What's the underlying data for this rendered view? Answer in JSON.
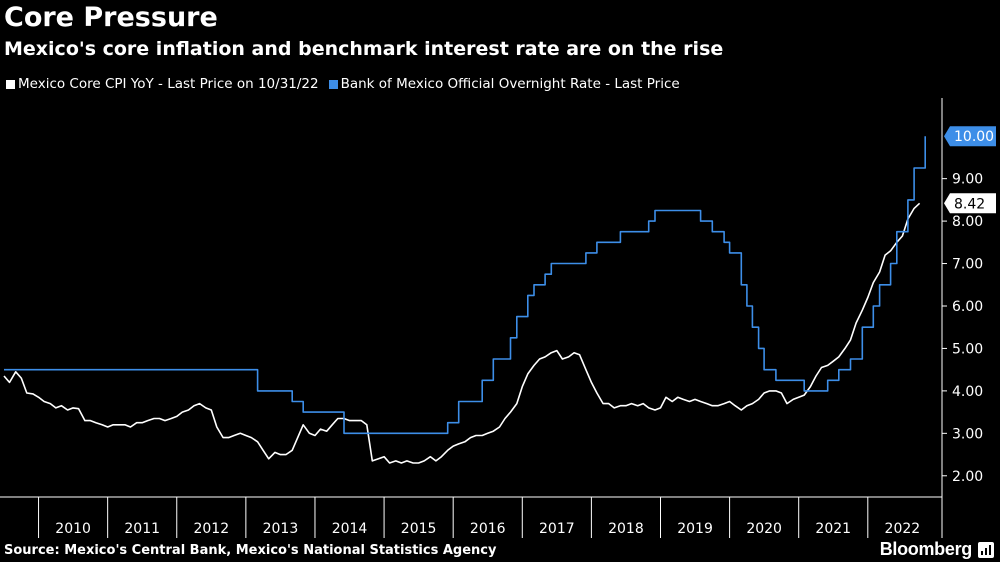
{
  "title": "Core Pressure",
  "subtitle": "Mexico's core inflation and benchmark interest rate are on the rise",
  "source": "Source: Mexico's Central Bank, Mexico's National Statistics Agency",
  "brand": "Bloomberg",
  "legend": [
    {
      "label": "Mexico Core CPI YoY - Last Price on 10/31/22",
      "color": "#ffffff"
    },
    {
      "label": "Bank of Mexico Official Overnight Rate - Last Price",
      "color": "#3d8ee8"
    }
  ],
  "chart_data": {
    "type": "line",
    "title": "Core Pressure",
    "xlabel": "",
    "ylabel": "",
    "xlim": [
      2009.5,
      2022.9
    ],
    "ylim": [
      1.5,
      10.9
    ],
    "yticks": [
      "2.00",
      "3.00",
      "4.00",
      "5.00",
      "6.00",
      "7.00",
      "8.00",
      "9.00"
    ],
    "xticks": [
      "2010",
      "2011",
      "2012",
      "2013",
      "2014",
      "2015",
      "2016",
      "2017",
      "2018",
      "2019",
      "2020",
      "2021",
      "2022"
    ],
    "grid": false,
    "legend_position": "top-left",
    "series": [
      {
        "name": "Mexico Core CPI YoY - Last Price on 10/31/22",
        "color": "#ffffff",
        "last_value_label": "8.42",
        "points": [
          [
            2009.5,
            4.35
          ],
          [
            2009.58,
            4.2
          ],
          [
            2009.67,
            4.45
          ],
          [
            2009.75,
            4.3
          ],
          [
            2009.83,
            3.95
          ],
          [
            2009.92,
            3.93
          ],
          [
            2010.0,
            3.85
          ],
          [
            2010.08,
            3.75
          ],
          [
            2010.17,
            3.7
          ],
          [
            2010.25,
            3.6
          ],
          [
            2010.33,
            3.65
          ],
          [
            2010.42,
            3.55
          ],
          [
            2010.5,
            3.6
          ],
          [
            2010.58,
            3.58
          ],
          [
            2010.67,
            3.3
          ],
          [
            2010.75,
            3.3
          ],
          [
            2010.83,
            3.25
          ],
          [
            2010.92,
            3.2
          ],
          [
            2011.0,
            3.15
          ],
          [
            2011.08,
            3.2
          ],
          [
            2011.17,
            3.2
          ],
          [
            2011.25,
            3.2
          ],
          [
            2011.33,
            3.15
          ],
          [
            2011.42,
            3.25
          ],
          [
            2011.5,
            3.25
          ],
          [
            2011.58,
            3.3
          ],
          [
            2011.67,
            3.35
          ],
          [
            2011.75,
            3.35
          ],
          [
            2011.83,
            3.3
          ],
          [
            2011.92,
            3.35
          ],
          [
            2012.0,
            3.4
          ],
          [
            2012.08,
            3.5
          ],
          [
            2012.17,
            3.55
          ],
          [
            2012.25,
            3.65
          ],
          [
            2012.33,
            3.7
          ],
          [
            2012.42,
            3.6
          ],
          [
            2012.5,
            3.55
          ],
          [
            2012.58,
            3.15
          ],
          [
            2012.67,
            2.9
          ],
          [
            2012.75,
            2.9
          ],
          [
            2012.83,
            2.95
          ],
          [
            2012.92,
            3.0
          ],
          [
            2013.0,
            2.95
          ],
          [
            2013.08,
            2.9
          ],
          [
            2013.17,
            2.8
          ],
          [
            2013.25,
            2.6
          ],
          [
            2013.33,
            2.4
          ],
          [
            2013.42,
            2.55
          ],
          [
            2013.5,
            2.5
          ],
          [
            2013.58,
            2.5
          ],
          [
            2013.67,
            2.6
          ],
          [
            2013.75,
            2.9
          ],
          [
            2013.83,
            3.2
          ],
          [
            2013.92,
            3.0
          ],
          [
            2014.0,
            2.95
          ],
          [
            2014.08,
            3.1
          ],
          [
            2014.17,
            3.05
          ],
          [
            2014.25,
            3.2
          ],
          [
            2014.33,
            3.35
          ],
          [
            2014.42,
            3.35
          ],
          [
            2014.5,
            3.3
          ],
          [
            2014.58,
            3.3
          ],
          [
            2014.67,
            3.3
          ],
          [
            2014.75,
            3.2
          ],
          [
            2014.83,
            2.35
          ],
          [
            2014.92,
            2.4
          ],
          [
            2015.0,
            2.45
          ],
          [
            2015.08,
            2.3
          ],
          [
            2015.17,
            2.35
          ],
          [
            2015.25,
            2.3
          ],
          [
            2015.33,
            2.35
          ],
          [
            2015.42,
            2.3
          ],
          [
            2015.5,
            2.3
          ],
          [
            2015.58,
            2.35
          ],
          [
            2015.67,
            2.45
          ],
          [
            2015.75,
            2.35
          ],
          [
            2015.83,
            2.45
          ],
          [
            2015.92,
            2.6
          ],
          [
            2016.0,
            2.7
          ],
          [
            2016.08,
            2.75
          ],
          [
            2016.17,
            2.8
          ],
          [
            2016.25,
            2.9
          ],
          [
            2016.33,
            2.95
          ],
          [
            2016.42,
            2.95
          ],
          [
            2016.5,
            3.0
          ],
          [
            2016.58,
            3.05
          ],
          [
            2016.67,
            3.15
          ],
          [
            2016.75,
            3.35
          ],
          [
            2016.83,
            3.5
          ],
          [
            2016.92,
            3.7
          ],
          [
            2017.0,
            4.1
          ],
          [
            2017.08,
            4.4
          ],
          [
            2017.17,
            4.6
          ],
          [
            2017.25,
            4.75
          ],
          [
            2017.33,
            4.8
          ],
          [
            2017.42,
            4.9
          ],
          [
            2017.5,
            4.95
          ],
          [
            2017.58,
            4.75
          ],
          [
            2017.67,
            4.8
          ],
          [
            2017.75,
            4.9
          ],
          [
            2017.83,
            4.85
          ],
          [
            2017.92,
            4.5
          ],
          [
            2018.0,
            4.2
          ],
          [
            2018.08,
            3.95
          ],
          [
            2018.17,
            3.7
          ],
          [
            2018.25,
            3.7
          ],
          [
            2018.33,
            3.6
          ],
          [
            2018.42,
            3.65
          ],
          [
            2018.5,
            3.65
          ],
          [
            2018.58,
            3.7
          ],
          [
            2018.67,
            3.65
          ],
          [
            2018.75,
            3.7
          ],
          [
            2018.83,
            3.6
          ],
          [
            2018.92,
            3.55
          ],
          [
            2019.0,
            3.6
          ],
          [
            2019.08,
            3.85
          ],
          [
            2019.17,
            3.75
          ],
          [
            2019.25,
            3.85
          ],
          [
            2019.33,
            3.8
          ],
          [
            2019.42,
            3.75
          ],
          [
            2019.5,
            3.8
          ],
          [
            2019.58,
            3.75
          ],
          [
            2019.67,
            3.7
          ],
          [
            2019.75,
            3.65
          ],
          [
            2019.83,
            3.65
          ],
          [
            2019.92,
            3.7
          ],
          [
            2020.0,
            3.75
          ],
          [
            2020.08,
            3.65
          ],
          [
            2020.17,
            3.55
          ],
          [
            2020.25,
            3.65
          ],
          [
            2020.33,
            3.7
          ],
          [
            2020.42,
            3.8
          ],
          [
            2020.5,
            3.95
          ],
          [
            2020.58,
            4.0
          ],
          [
            2020.67,
            4.0
          ],
          [
            2020.75,
            3.95
          ],
          [
            2020.83,
            3.7
          ],
          [
            2020.92,
            3.8
          ],
          [
            2021.0,
            3.85
          ],
          [
            2021.08,
            3.9
          ],
          [
            2021.17,
            4.1
          ],
          [
            2021.25,
            4.35
          ],
          [
            2021.33,
            4.55
          ],
          [
            2021.42,
            4.6
          ],
          [
            2021.5,
            4.7
          ],
          [
            2021.58,
            4.8
          ],
          [
            2021.67,
            5.0
          ],
          [
            2021.75,
            5.2
          ],
          [
            2021.83,
            5.6
          ],
          [
            2021.92,
            5.9
          ],
          [
            2022.0,
            6.2
          ],
          [
            2022.08,
            6.55
          ],
          [
            2022.17,
            6.8
          ],
          [
            2022.25,
            7.2
          ],
          [
            2022.33,
            7.3
          ],
          [
            2022.42,
            7.5
          ],
          [
            2022.5,
            7.65
          ],
          [
            2022.58,
            8.05
          ],
          [
            2022.67,
            8.3
          ],
          [
            2022.75,
            8.42
          ]
        ]
      },
      {
        "name": "Bank of Mexico Official Overnight Rate - Last Price",
        "color": "#3d8ee8",
        "last_value_label": "10.00",
        "step": true,
        "points": [
          [
            2009.5,
            4.5
          ],
          [
            2012.92,
            4.5
          ],
          [
            2013.17,
            4.0
          ],
          [
            2013.67,
            3.75
          ],
          [
            2013.83,
            3.5
          ],
          [
            2014.42,
            3.0
          ],
          [
            2015.92,
            3.25
          ],
          [
            2016.08,
            3.75
          ],
          [
            2016.42,
            4.25
          ],
          [
            2016.58,
            4.75
          ],
          [
            2016.83,
            5.25
          ],
          [
            2016.92,
            5.75
          ],
          [
            2017.08,
            6.25
          ],
          [
            2017.17,
            6.5
          ],
          [
            2017.33,
            6.75
          ],
          [
            2017.42,
            7.0
          ],
          [
            2017.92,
            7.25
          ],
          [
            2018.08,
            7.5
          ],
          [
            2018.42,
            7.75
          ],
          [
            2018.83,
            8.0
          ],
          [
            2018.92,
            8.25
          ],
          [
            2019.58,
            8.0
          ],
          [
            2019.75,
            7.75
          ],
          [
            2019.92,
            7.5
          ],
          [
            2020.0,
            7.25
          ],
          [
            2020.17,
            6.5
          ],
          [
            2020.25,
            6.0
          ],
          [
            2020.33,
            5.5
          ],
          [
            2020.42,
            5.0
          ],
          [
            2020.5,
            4.5
          ],
          [
            2020.67,
            4.25
          ],
          [
            2021.08,
            4.0
          ],
          [
            2021.42,
            4.25
          ],
          [
            2021.58,
            4.5
          ],
          [
            2021.75,
            4.75
          ],
          [
            2021.92,
            5.5
          ],
          [
            2022.08,
            6.0
          ],
          [
            2022.17,
            6.5
          ],
          [
            2022.33,
            7.0
          ],
          [
            2022.42,
            7.75
          ],
          [
            2022.58,
            8.5
          ],
          [
            2022.67,
            9.25
          ],
          [
            2022.83,
            10.0
          ]
        ]
      }
    ]
  }
}
